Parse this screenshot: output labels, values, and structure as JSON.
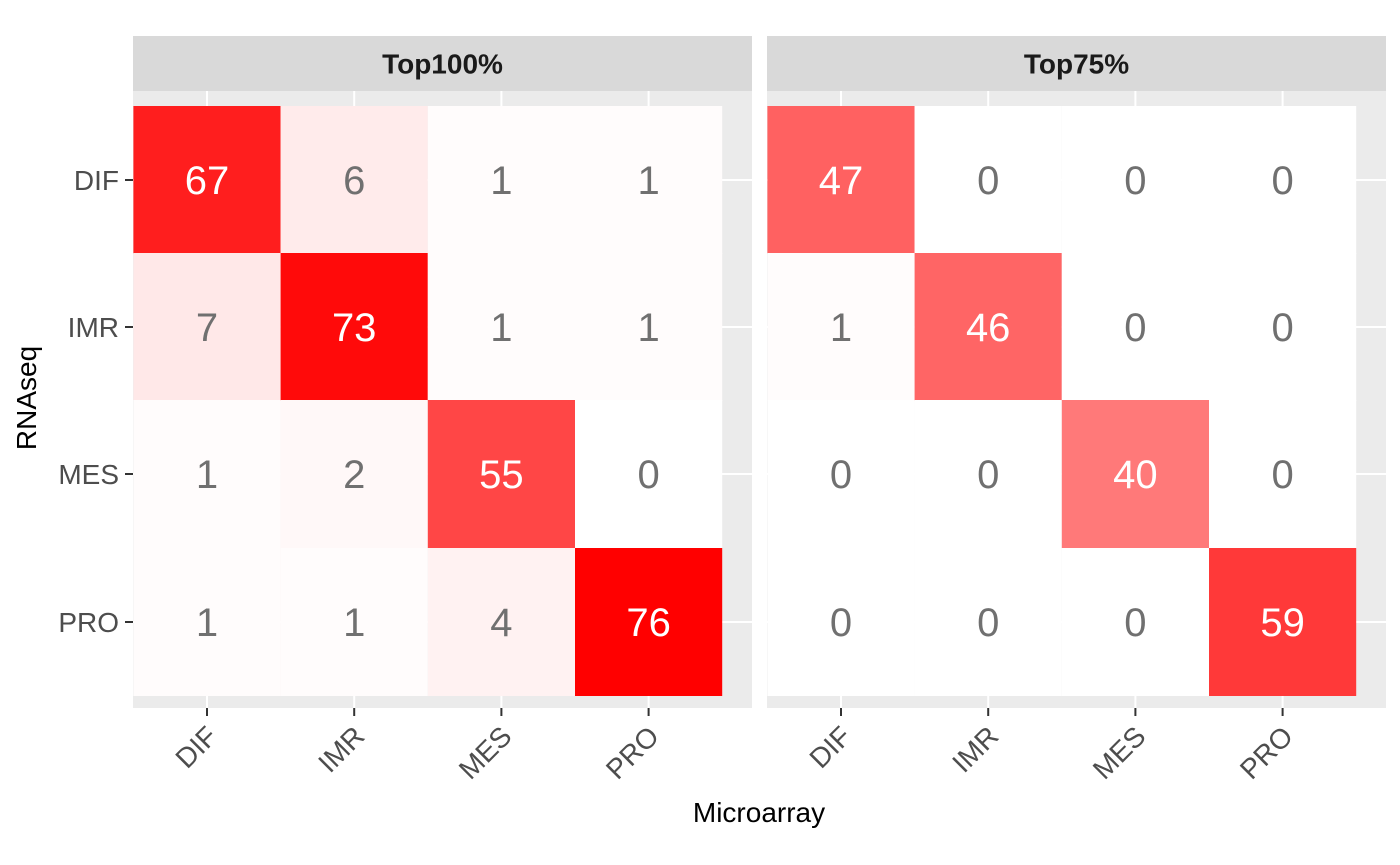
{
  "chart_data": {
    "type": "heatmap",
    "xlabel": "Microarray",
    "ylabel": "RNAseq",
    "x_categories": [
      "DIF",
      "IMR",
      "MES",
      "PRO"
    ],
    "y_categories": [
      "DIF",
      "IMR",
      "MES",
      "PRO"
    ],
    "grid": true,
    "colors": {
      "low": "#ffffff",
      "high": "#ff0000",
      "label_light": "#ffffff",
      "label_dark": "#707070",
      "panel_bg": "#ebebeb",
      "strip_bg": "#d9d9d9"
    },
    "panels": [
      {
        "title": "Top100%",
        "values": [
          [
            67,
            6,
            1,
            1
          ],
          [
            7,
            73,
            1,
            1
          ],
          [
            1,
            2,
            55,
            0
          ],
          [
            1,
            1,
            4,
            76
          ]
        ]
      },
      {
        "title": "Top75%",
        "values": [
          [
            47,
            0,
            0,
            0
          ],
          [
            1,
            46,
            0,
            0
          ],
          [
            0,
            0,
            40,
            0
          ],
          [
            0,
            0,
            0,
            59
          ]
        ]
      }
    ]
  }
}
